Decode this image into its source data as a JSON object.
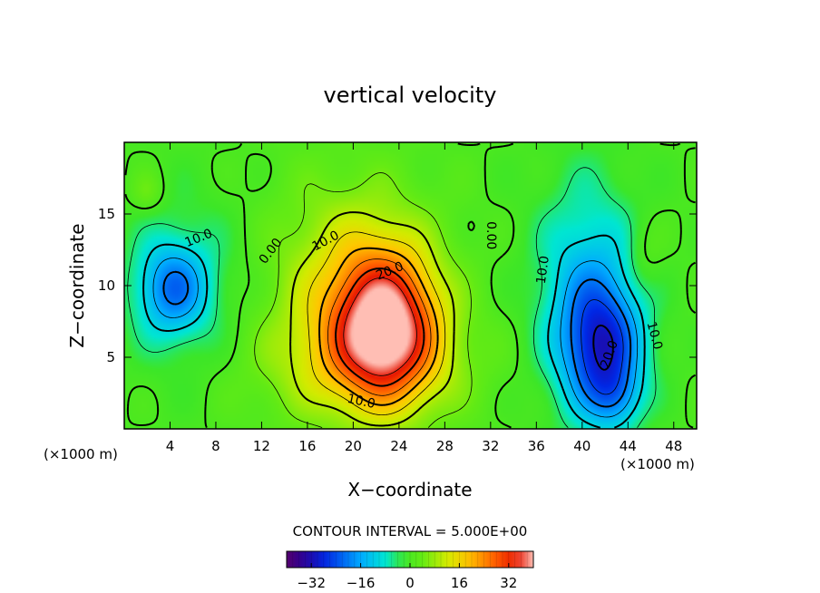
{
  "chart_data": {
    "type": "heatmap",
    "title": "vertical velocity",
    "xlabel": "X−coordinate",
    "ylabel": "Z−coordinate",
    "x_unit_left": "(×1000 m)",
    "x_unit_right": "(×1000 m)",
    "xlim": [
      0,
      50
    ],
    "ylim": [
      0,
      20
    ],
    "x_ticks": [
      4,
      8,
      12,
      16,
      20,
      24,
      28,
      32,
      36,
      40,
      44,
      48
    ],
    "y_ticks": [
      5,
      10,
      15
    ],
    "contour_interval_text": "CONTOUR INTERVAL = 5.000E+00",
    "contour_interval": 5,
    "colorbar": {
      "range": [
        -40,
        40
      ],
      "ticks": [
        -32,
        -16,
        0,
        16,
        32
      ],
      "tick_labels": [
        "−32",
        "−16",
        "0",
        "16",
        "32"
      ]
    },
    "contour_labels": [
      {
        "text": "10.0",
        "x": 6.5,
        "z": 13.3,
        "rotate": -22
      },
      {
        "text": "0.00",
        "x": 12.8,
        "z": 12.4,
        "rotate": -52
      },
      {
        "text": "10.0",
        "x": 17.6,
        "z": 13.1,
        "rotate": -28
      },
      {
        "text": "20.0",
        "x": 23.2,
        "z": 11.0,
        "rotate": -22
      },
      {
        "text": "10.0",
        "x": 20.7,
        "z": 1.9,
        "rotate": 12
      },
      {
        "text": "0.00",
        "x": 32.0,
        "z": 13.5,
        "rotate": 90
      },
      {
        "text": "10.0",
        "x": 36.6,
        "z": 11.1,
        "rotate": -82
      },
      {
        "text": "20.0",
        "x": 42.4,
        "z": 5.2,
        "rotate": -70
      },
      {
        "text": "10.0",
        "x": 46.3,
        "z": 6.5,
        "rotate": 75
      }
    ],
    "field_components": [
      {
        "amplitude": 36,
        "x": 22.8,
        "z": 7.2,
        "sigma_x": 3.2,
        "sigma_z": 3.6
      },
      {
        "amplitude": 11,
        "x": 19.5,
        "z": 10.8,
        "sigma_x": 5.0,
        "sigma_z": 4.8
      },
      {
        "amplitude": 10,
        "x": 20.5,
        "z": 4.5,
        "sigma_x": 6.5,
        "sigma_z": 3.0
      },
      {
        "amplitude": -16,
        "x": 4.2,
        "z": 9.8,
        "sigma_x": 2.1,
        "sigma_z": 2.2
      },
      {
        "amplitude": -6,
        "x": 5.5,
        "z": 10.0,
        "sigma_x": 4.0,
        "sigma_z": 4.5
      },
      {
        "amplitude": -22,
        "x": 41.8,
        "z": 5.5,
        "sigma_x": 2.4,
        "sigma_z": 3.2
      },
      {
        "amplitude": -13,
        "x": 40.5,
        "z": 9.5,
        "sigma_x": 3.2,
        "sigma_z": 5.5
      },
      {
        "amplitude": -8,
        "x": 43.0,
        "z": 2.2,
        "sigma_x": 1.5,
        "sigma_z": 1.5
      },
      {
        "amplitude": 5,
        "x": 2.0,
        "z": 16.5,
        "sigma_x": 1.0,
        "sigma_z": 1.0
      },
      {
        "amplitude": 4,
        "x": 45.5,
        "z": 12.0,
        "sigma_x": 1.2,
        "sigma_z": 1.8
      }
    ]
  }
}
